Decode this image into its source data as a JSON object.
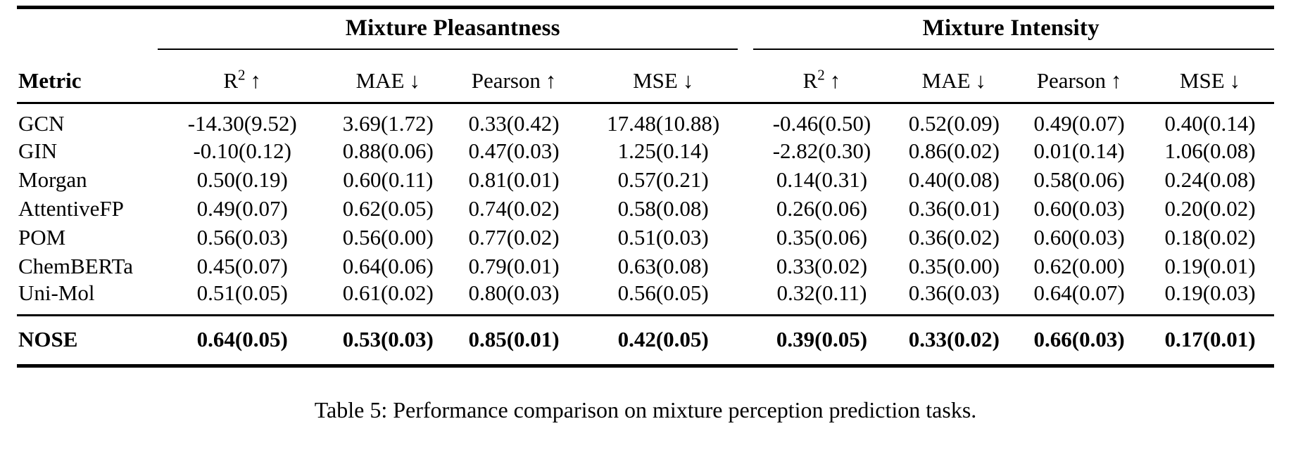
{
  "table": {
    "metric_header": "Metric",
    "groups": [
      "Mixture Pleasantness",
      "Mixture Intensity"
    ],
    "sub_headers": [
      {
        "base": "R",
        "sup": "2",
        "arrow": "↑"
      },
      {
        "base": "MAE",
        "sup": "",
        "arrow": "↓"
      },
      {
        "base": "Pearson",
        "sup": "",
        "arrow": "↑"
      },
      {
        "base": "MSE",
        "sup": "",
        "arrow": "↓"
      }
    ],
    "rows": [
      {
        "label": "GCN",
        "bold": false,
        "values": [
          "-14.30(9.52)",
          "3.69(1.72)",
          "0.33(0.42)",
          "17.48(10.88)",
          "-0.46(0.50)",
          "0.52(0.09)",
          "0.49(0.07)",
          "0.40(0.14)"
        ]
      },
      {
        "label": "GIN",
        "bold": false,
        "values": [
          "-0.10(0.12)",
          "0.88(0.06)",
          "0.47(0.03)",
          "1.25(0.14)",
          "-2.82(0.30)",
          "0.86(0.02)",
          "0.01(0.14)",
          "1.06(0.08)"
        ]
      },
      {
        "label": "Morgan",
        "bold": false,
        "values": [
          "0.50(0.19)",
          "0.60(0.11)",
          "0.81(0.01)",
          "0.57(0.21)",
          "0.14(0.31)",
          "0.40(0.08)",
          "0.58(0.06)",
          "0.24(0.08)"
        ]
      },
      {
        "label": "AttentiveFP",
        "bold": false,
        "values": [
          "0.49(0.07)",
          "0.62(0.05)",
          "0.74(0.02)",
          "0.58(0.08)",
          "0.26(0.06)",
          "0.36(0.01)",
          "0.60(0.03)",
          "0.20(0.02)"
        ]
      },
      {
        "label": "POM",
        "bold": false,
        "values": [
          "0.56(0.03)",
          "0.56(0.00)",
          "0.77(0.02)",
          "0.51(0.03)",
          "0.35(0.06)",
          "0.36(0.02)",
          "0.60(0.03)",
          "0.18(0.02)"
        ]
      },
      {
        "label": "ChemBERTa",
        "bold": false,
        "values": [
          "0.45(0.07)",
          "0.64(0.06)",
          "0.79(0.01)",
          "0.63(0.08)",
          "0.33(0.02)",
          "0.35(0.00)",
          "0.62(0.00)",
          "0.19(0.01)"
        ]
      },
      {
        "label": "Uni-Mol",
        "bold": false,
        "values": [
          "0.51(0.05)",
          "0.61(0.02)",
          "0.80(0.03)",
          "0.56(0.05)",
          "0.32(0.11)",
          "0.36(0.03)",
          "0.64(0.07)",
          "0.19(0.03)"
        ]
      },
      {
        "label": "NOSE",
        "bold": true,
        "values": [
          "0.64(0.05)",
          "0.53(0.03)",
          "0.85(0.01)",
          "0.42(0.05)",
          "0.39(0.05)",
          "0.33(0.02)",
          "0.66(0.03)",
          "0.17(0.01)"
        ]
      }
    ]
  },
  "caption": "Table 5: Performance comparison on mixture perception prediction tasks."
}
